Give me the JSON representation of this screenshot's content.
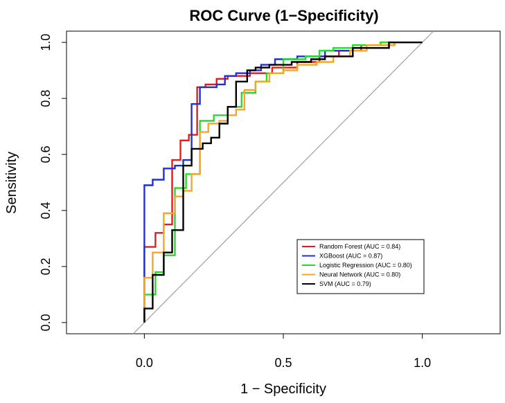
{
  "chart_data": {
    "type": "line",
    "title": "ROC Curve (1−Specificity)",
    "xlabel": "1 − Specificity",
    "ylabel": "Sensitivity",
    "xlim": [
      -0.28,
      1.28
    ],
    "ylim": [
      -0.04,
      1.04
    ],
    "xticks": [
      0.0,
      0.5,
      1.0
    ],
    "xtick_labels": [
      "0.0",
      "0.5",
      "1.0"
    ],
    "yticks": [
      0.0,
      0.2,
      0.4,
      0.6,
      0.8,
      1.0
    ],
    "ytick_labels": [
      "0.0",
      "0.2",
      "0.4",
      "0.6",
      "0.8",
      "1.0"
    ],
    "grid": false,
    "legend_position": "bottom-right",
    "reference_line": {
      "from": [
        -0.04,
        -0.04
      ],
      "to": [
        1.04,
        1.04
      ],
      "color": "#9e9e9e"
    },
    "series": [
      {
        "name": "Random Forest (AUC = 0.84)",
        "color": "#e41a1c",
        "points": [
          [
            0,
            0
          ],
          [
            0,
            0.27
          ],
          [
            0.04,
            0.27
          ],
          [
            0.04,
            0.32
          ],
          [
            0.07,
            0.32
          ],
          [
            0.07,
            0.35
          ],
          [
            0.1,
            0.35
          ],
          [
            0.1,
            0.58
          ],
          [
            0.13,
            0.58
          ],
          [
            0.13,
            0.65
          ],
          [
            0.16,
            0.65
          ],
          [
            0.16,
            0.67
          ],
          [
            0.19,
            0.67
          ],
          [
            0.19,
            0.84
          ],
          [
            0.22,
            0.84
          ],
          [
            0.22,
            0.85
          ],
          [
            0.26,
            0.85
          ],
          [
            0.26,
            0.87
          ],
          [
            0.3,
            0.87
          ],
          [
            0.3,
            0.88
          ],
          [
            0.38,
            0.88
          ],
          [
            0.38,
            0.89
          ],
          [
            0.46,
            0.89
          ],
          [
            0.46,
            0.91
          ],
          [
            0.55,
            0.91
          ],
          [
            0.55,
            0.93
          ],
          [
            0.63,
            0.93
          ],
          [
            0.63,
            0.95
          ],
          [
            0.7,
            0.95
          ],
          [
            0.7,
            0.97
          ],
          [
            0.78,
            0.97
          ],
          [
            0.78,
            0.99
          ],
          [
            0.9,
            0.99
          ],
          [
            0.9,
            1.0
          ],
          [
            1.0,
            1.0
          ]
        ]
      },
      {
        "name": "XGBoost (AUC = 0.87)",
        "color": "#1f2fd6",
        "points": [
          [
            0,
            0
          ],
          [
            0,
            0.49
          ],
          [
            0.03,
            0.49
          ],
          [
            0.03,
            0.51
          ],
          [
            0.07,
            0.51
          ],
          [
            0.07,
            0.55
          ],
          [
            0.11,
            0.55
          ],
          [
            0.11,
            0.56
          ],
          [
            0.14,
            0.56
          ],
          [
            0.14,
            0.58
          ],
          [
            0.17,
            0.58
          ],
          [
            0.17,
            0.78
          ],
          [
            0.2,
            0.78
          ],
          [
            0.2,
            0.84
          ],
          [
            0.26,
            0.84
          ],
          [
            0.26,
            0.85
          ],
          [
            0.29,
            0.85
          ],
          [
            0.29,
            0.88
          ],
          [
            0.33,
            0.88
          ],
          [
            0.33,
            0.89
          ],
          [
            0.38,
            0.89
          ],
          [
            0.38,
            0.9
          ],
          [
            0.42,
            0.9
          ],
          [
            0.42,
            0.92
          ],
          [
            0.47,
            0.92
          ],
          [
            0.47,
            0.94
          ],
          [
            0.55,
            0.94
          ],
          [
            0.55,
            0.95
          ],
          [
            0.65,
            0.95
          ],
          [
            0.65,
            0.97
          ],
          [
            0.75,
            0.97
          ],
          [
            0.75,
            0.98
          ],
          [
            0.88,
            0.98
          ],
          [
            0.88,
            1.0
          ],
          [
            1.0,
            1.0
          ]
        ]
      },
      {
        "name": "Logistic Regression (AUC = 0.80)",
        "color": "#22dd22",
        "points": [
          [
            0,
            0
          ],
          [
            0,
            0.1
          ],
          [
            0.04,
            0.1
          ],
          [
            0.04,
            0.18
          ],
          [
            0.07,
            0.18
          ],
          [
            0.07,
            0.24
          ],
          [
            0.11,
            0.24
          ],
          [
            0.11,
            0.48
          ],
          [
            0.15,
            0.48
          ],
          [
            0.15,
            0.53
          ],
          [
            0.2,
            0.53
          ],
          [
            0.2,
            0.72
          ],
          [
            0.25,
            0.72
          ],
          [
            0.25,
            0.74
          ],
          [
            0.3,
            0.74
          ],
          [
            0.3,
            0.77
          ],
          [
            0.35,
            0.77
          ],
          [
            0.35,
            0.82
          ],
          [
            0.4,
            0.82
          ],
          [
            0.4,
            0.86
          ],
          [
            0.44,
            0.86
          ],
          [
            0.44,
            0.89
          ],
          [
            0.5,
            0.89
          ],
          [
            0.5,
            0.94
          ],
          [
            0.58,
            0.94
          ],
          [
            0.58,
            0.95
          ],
          [
            0.63,
            0.95
          ],
          [
            0.63,
            0.97
          ],
          [
            0.68,
            0.97
          ],
          [
            0.68,
            0.98
          ],
          [
            0.75,
            0.98
          ],
          [
            0.75,
            0.99
          ],
          [
            0.85,
            0.99
          ],
          [
            0.85,
            1.0
          ],
          [
            1.0,
            1.0
          ]
        ]
      },
      {
        "name": "Neural Network (AUC = 0.80)",
        "color": "#f5a623",
        "points": [
          [
            0,
            0
          ],
          [
            0,
            0.16
          ],
          [
            0.03,
            0.16
          ],
          [
            0.03,
            0.25
          ],
          [
            0.07,
            0.25
          ],
          [
            0.07,
            0.39
          ],
          [
            0.11,
            0.39
          ],
          [
            0.11,
            0.45
          ],
          [
            0.14,
            0.45
          ],
          [
            0.14,
            0.47
          ],
          [
            0.17,
            0.47
          ],
          [
            0.17,
            0.53
          ],
          [
            0.2,
            0.53
          ],
          [
            0.2,
            0.68
          ],
          [
            0.23,
            0.68
          ],
          [
            0.23,
            0.71
          ],
          [
            0.27,
            0.71
          ],
          [
            0.27,
            0.72
          ],
          [
            0.3,
            0.72
          ],
          [
            0.3,
            0.74
          ],
          [
            0.33,
            0.74
          ],
          [
            0.33,
            0.76
          ],
          [
            0.36,
            0.76
          ],
          [
            0.36,
            0.83
          ],
          [
            0.4,
            0.83
          ],
          [
            0.4,
            0.86
          ],
          [
            0.45,
            0.86
          ],
          [
            0.45,
            0.89
          ],
          [
            0.5,
            0.89
          ],
          [
            0.5,
            0.9
          ],
          [
            0.55,
            0.9
          ],
          [
            0.55,
            0.92
          ],
          [
            0.62,
            0.92
          ],
          [
            0.62,
            0.93
          ],
          [
            0.68,
            0.93
          ],
          [
            0.68,
            0.95
          ],
          [
            0.74,
            0.95
          ],
          [
            0.74,
            0.97
          ],
          [
            0.8,
            0.97
          ],
          [
            0.8,
            0.99
          ],
          [
            0.9,
            0.99
          ],
          [
            0.9,
            1.0
          ],
          [
            1.0,
            1.0
          ]
        ]
      },
      {
        "name": "SVM (AUC = 0.79)",
        "color": "#000000",
        "points": [
          [
            0,
            0
          ],
          [
            0,
            0.05
          ],
          [
            0.03,
            0.05
          ],
          [
            0.03,
            0.17
          ],
          [
            0.07,
            0.17
          ],
          [
            0.07,
            0.25
          ],
          [
            0.1,
            0.25
          ],
          [
            0.1,
            0.33
          ],
          [
            0.14,
            0.33
          ],
          [
            0.14,
            0.56
          ],
          [
            0.17,
            0.56
          ],
          [
            0.17,
            0.62
          ],
          [
            0.21,
            0.62
          ],
          [
            0.21,
            0.64
          ],
          [
            0.24,
            0.64
          ],
          [
            0.24,
            0.66
          ],
          [
            0.27,
            0.66
          ],
          [
            0.27,
            0.71
          ],
          [
            0.3,
            0.71
          ],
          [
            0.3,
            0.77
          ],
          [
            0.33,
            0.77
          ],
          [
            0.33,
            0.86
          ],
          [
            0.37,
            0.86
          ],
          [
            0.37,
            0.9
          ],
          [
            0.4,
            0.9
          ],
          [
            0.4,
            0.91
          ],
          [
            0.45,
            0.91
          ],
          [
            0.45,
            0.92
          ],
          [
            0.53,
            0.92
          ],
          [
            0.53,
            0.93
          ],
          [
            0.6,
            0.93
          ],
          [
            0.6,
            0.94
          ],
          [
            0.65,
            0.94
          ],
          [
            0.65,
            0.95
          ],
          [
            0.75,
            0.95
          ],
          [
            0.75,
            0.98
          ],
          [
            0.88,
            0.98
          ],
          [
            0.88,
            1.0
          ],
          [
            1.0,
            1.0
          ]
        ]
      }
    ]
  }
}
